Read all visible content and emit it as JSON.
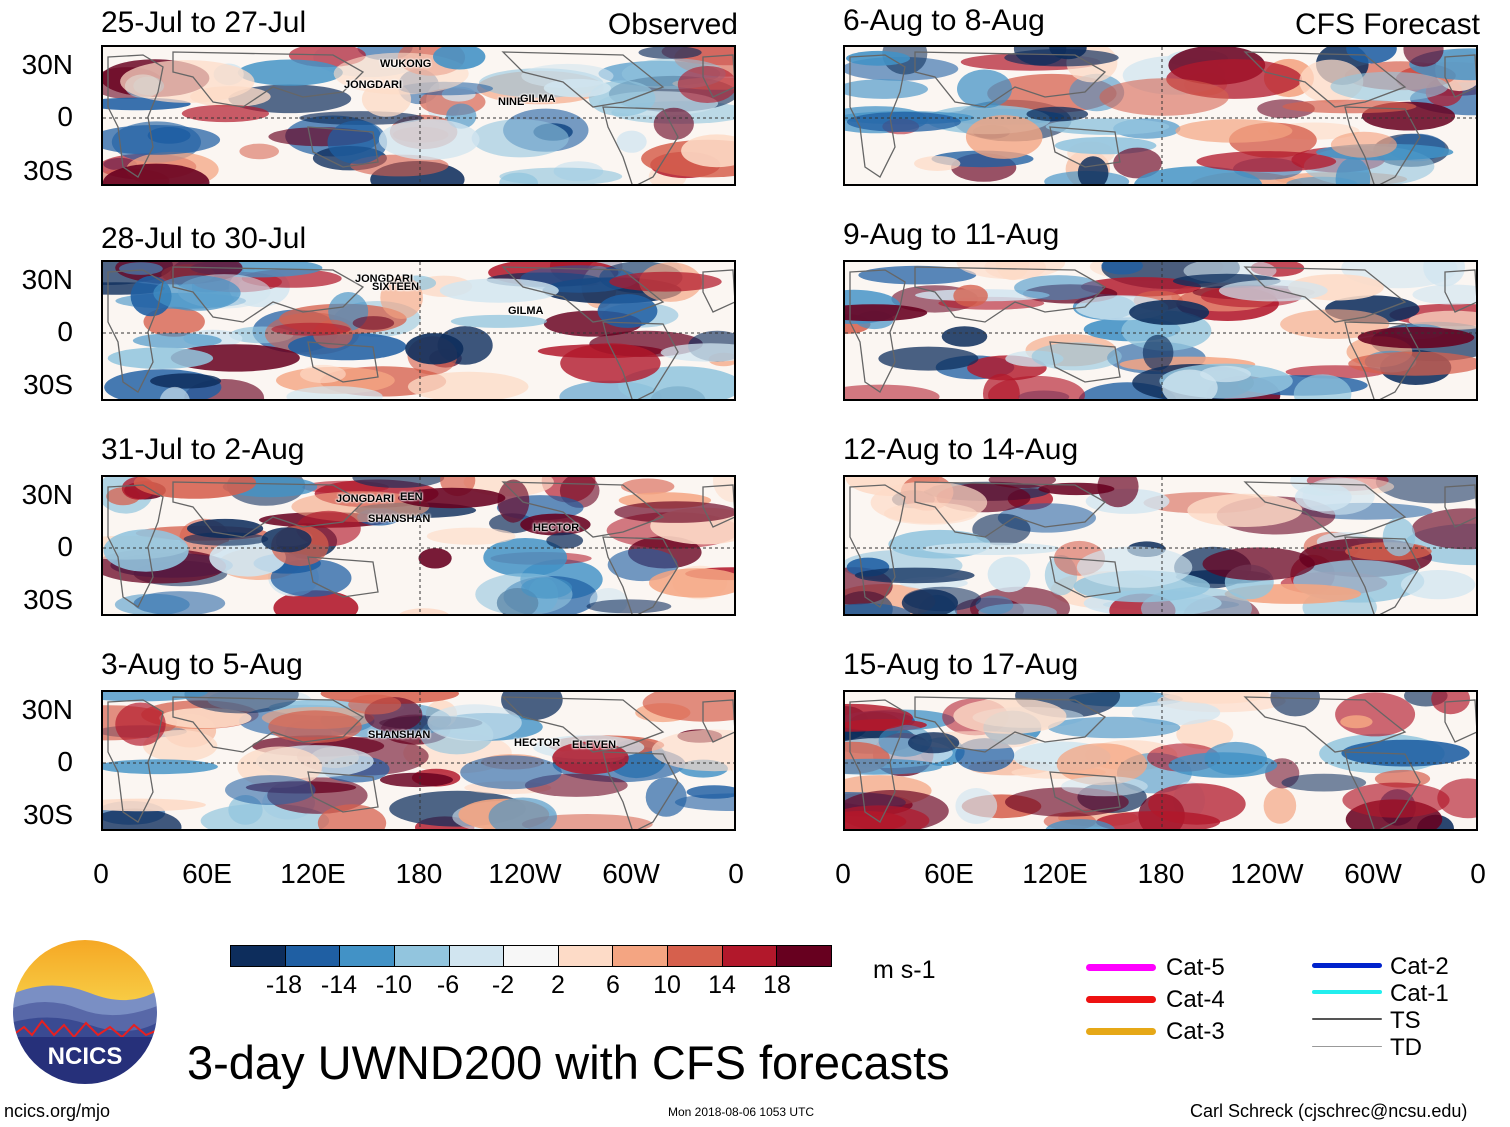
{
  "panels_left": [
    {
      "title": "25-Jul to 27-Jul",
      "corner_label": "Observed",
      "storms": [
        "WUKONG",
        "JONGDARI",
        "NINE",
        "GILMA"
      ]
    },
    {
      "title": "28-Jul to 30-Jul",
      "storms": [
        "JONGDARI",
        "SIXTEEN",
        "GILMA"
      ]
    },
    {
      "title": "31-Jul to 2-Aug",
      "storms": [
        "JONGDARI",
        "EEN",
        "SHANSHAN",
        "HECTOR"
      ]
    },
    {
      "title": "3-Aug to 5-Aug",
      "storms": [
        "SHANSHAN",
        "HECTOR",
        "ELEVEN"
      ]
    }
  ],
  "panels_right": [
    {
      "title": "6-Aug to 8-Aug",
      "corner_label": "CFS Forecast"
    },
    {
      "title": "9-Aug to 11-Aug"
    },
    {
      "title": "12-Aug to 14-Aug"
    },
    {
      "title": "15-Aug to 17-Aug"
    }
  ],
  "lat_labels": [
    "30N",
    "0",
    "30S"
  ],
  "lon_labels": [
    "0",
    "60E",
    "120E",
    "180",
    "120W",
    "60W",
    "0"
  ],
  "colorbar": {
    "colors": [
      "#0d2d5c",
      "#1f5fa3",
      "#4292c6",
      "#92c5de",
      "#d1e5f0",
      "#f7f7f7",
      "#fddbc7",
      "#f4a582",
      "#d6604d",
      "#b2182b",
      "#67001f"
    ],
    "ticks": [
      "-18",
      "-14",
      "-10",
      "-6",
      "-2",
      "2",
      "6",
      "10",
      "14",
      "18"
    ],
    "units": "m s-1"
  },
  "legend": {
    "left": [
      {
        "label": "Cat-5",
        "color": "#ff00ff"
      },
      {
        "label": "Cat-4",
        "color": "#ee1111"
      },
      {
        "label": "Cat-3",
        "color": "#e6a817"
      }
    ],
    "right": [
      {
        "label": "Cat-2",
        "color": "#0022cc"
      },
      {
        "label": "Cat-1",
        "color": "#22eeee"
      },
      {
        "label": "TS",
        "color": "#555555"
      },
      {
        "label": "TD",
        "color": "#999999"
      }
    ]
  },
  "logo_text": "NCICS",
  "main_title": "3-day UWND200 with CFS forecasts",
  "footer": {
    "left": "ncics.org/mjo",
    "center": "Mon 2018-08-06 1053 UTC",
    "right": "Carl Schreck (cjschrec@ncsu.edu)"
  }
}
